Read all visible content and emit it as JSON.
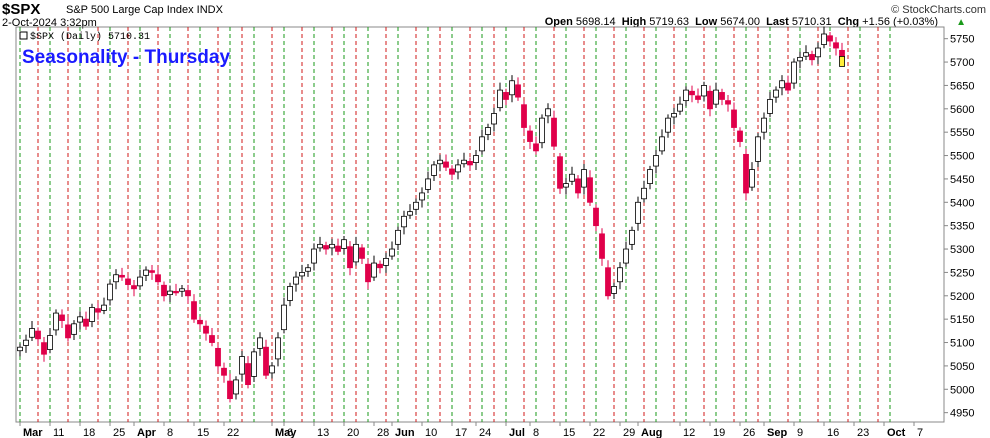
{
  "header": {
    "ticker": "$SPX",
    "description": "S&P 500 Large Cap Index INDX",
    "date": "2-Oct-2024 3:32pm",
    "open_label": "Open",
    "open": "5698.14",
    "high_label": "High",
    "high": "5719.63",
    "low_label": "Low",
    "low": "5674.00",
    "last_label": "Last",
    "last": "5710.31",
    "chg_label": "Chg",
    "chg": "+1.56 (+0.03%)",
    "stockcharts": "© StockCharts.com"
  },
  "colors": {
    "up": "#ffffff",
    "down": "#e0004a",
    "line": "#000000",
    "green_grid": "#1a9a1a",
    "red_grid": "#d01a1a",
    "title": "#1a1aff"
  },
  "chart_data": {
    "type": "candlestick",
    "title": "Seasonality - Thursday",
    "legend": "$SPX (Daily) 5710.31",
    "ylim": [
      4930,
      5775
    ],
    "yticks": [
      4950,
      5000,
      5050,
      5100,
      5150,
      5200,
      5250,
      5300,
      5350,
      5400,
      5450,
      5500,
      5550,
      5600,
      5650,
      5700,
      5750
    ],
    "xticks": [
      {
        "label": "Mar",
        "i": 0,
        "bold": true
      },
      {
        "label": "11",
        "i": 5
      },
      {
        "label": "18",
        "i": 10
      },
      {
        "label": "25",
        "i": 15
      },
      {
        "label": "Apr",
        "i": 19,
        "bold": true
      },
      {
        "label": "8",
        "i": 24
      },
      {
        "label": "15",
        "i": 29
      },
      {
        "label": "22",
        "i": 34
      },
      {
        "label": "May",
        "i": 42,
        "bold": true
      },
      {
        "label": "6",
        "i": 44
      },
      {
        "label": "13",
        "i": 49
      },
      {
        "label": "20",
        "i": 54
      },
      {
        "label": "28",
        "i": 59
      },
      {
        "label": "Jun",
        "i": 62,
        "bold": true
      },
      {
        "label": "10",
        "i": 67
      },
      {
        "label": "17",
        "i": 72
      },
      {
        "label": "24",
        "i": 76
      },
      {
        "label": "Jul",
        "i": 81,
        "bold": true
      },
      {
        "label": "8",
        "i": 85
      },
      {
        "label": "15",
        "i": 90
      },
      {
        "label": "22",
        "i": 95
      },
      {
        "label": "29",
        "i": 100
      },
      {
        "label": "Aug",
        "i": 103,
        "bold": true
      },
      {
        "label": "12",
        "i": 110
      },
      {
        "label": "19",
        "i": 115
      },
      {
        "label": "26",
        "i": 120
      },
      {
        "label": "Sep",
        "i": 124,
        "bold": true
      },
      {
        "label": "9",
        "i": 129
      },
      {
        "label": "16",
        "i": 134
      },
      {
        "label": "23",
        "i": 139
      },
      {
        "label": "Oct",
        "i": 144,
        "bold": true
      },
      {
        "label": "7",
        "i": 149
      }
    ],
    "green_lines": [
      0,
      5,
      10,
      15,
      20,
      25,
      30,
      35,
      39,
      44,
      49,
      54,
      58,
      63,
      68,
      72,
      77,
      81,
      86,
      91,
      96,
      101,
      106,
      111,
      116,
      121,
      125,
      130,
      135,
      140,
      145
    ],
    "red_lines": [
      3,
      8,
      13,
      18,
      23,
      28,
      33,
      37,
      42,
      47,
      52,
      56,
      61,
      66,
      70,
      75,
      79,
      84,
      89,
      94,
      99,
      104,
      109,
      114,
      119,
      123,
      128,
      133,
      138,
      143
    ],
    "close": [
      5090,
      5105,
      5130,
      5108,
      5075,
      5115,
      5163,
      5147,
      5110,
      5140,
      5155,
      5135,
      5175,
      5165,
      5180,
      5225,
      5245,
      5240,
      5224,
      5215,
      5240,
      5255,
      5250,
      5230,
      5200,
      5210,
      5208,
      5215,
      5200,
      5150,
      5140,
      5120,
      5100,
      5050,
      5030,
      4980,
      5020,
      5070,
      5010,
      5080,
      5110,
      5030,
      5050,
      5110,
      5180,
      5220,
      5240,
      5250,
      5260,
      5300,
      5310,
      5300,
      5310,
      5295,
      5320,
      5260,
      5310,
      5280,
      5230,
      5270,
      5260,
      5280,
      5300,
      5340,
      5370,
      5380,
      5400,
      5420,
      5450,
      5480,
      5490,
      5475,
      5460,
      5480,
      5490,
      5480,
      5500,
      5540,
      5560,
      5590,
      5640,
      5620,
      5660,
      5625,
      5560,
      5530,
      5510,
      5580,
      5600,
      5520,
      5430,
      5440,
      5460,
      5420,
      5470,
      5400,
      5350,
      5280,
      5200,
      5220,
      5260,
      5300,
      5340,
      5400,
      5430,
      5470,
      5500,
      5540,
      5580,
      5590,
      5610,
      5640,
      5630,
      5620,
      5650,
      5600,
      5640,
      5620,
      5610,
      5560,
      5530,
      5420,
      5470,
      5540,
      5580,
      5620,
      5640,
      5660,
      5640,
      5700,
      5710,
      5720,
      5705,
      5730,
      5760,
      5745,
      5730,
      5710
    ],
    "last_close": 5710.31
  }
}
